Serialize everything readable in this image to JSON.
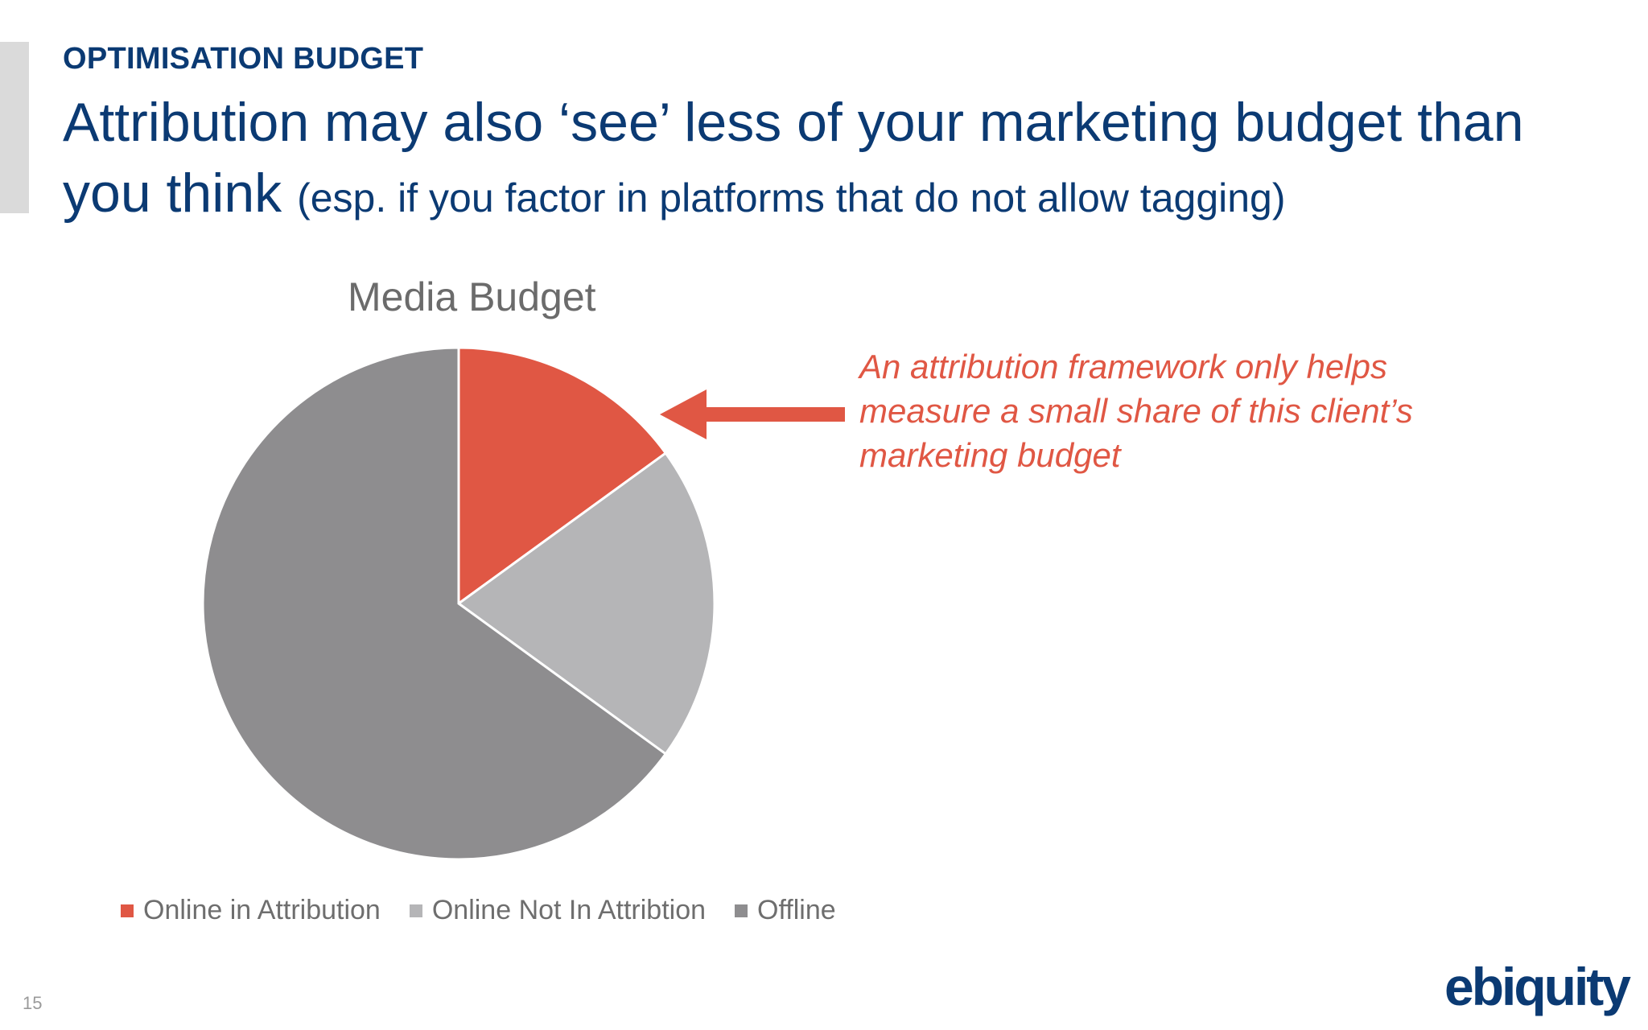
{
  "slide": {
    "kicker": "OPTIMISATION BUDGET",
    "headline_line1": "Attribution may also ‘see’ less of your marketing budget than",
    "headline_line2_main": "you think",
    "headline_line2_small": "(esp. if you factor in platforms that do not allow tagging)",
    "callout": "An attribution framework only helps measure a small share of this client’s marketing budget",
    "page_number": "15",
    "logo": "ebiquity"
  },
  "colors": {
    "accent": "#e05744",
    "brand": "#0b3a73"
  },
  "chart_data": {
    "type": "pie",
    "title": "Media Budget",
    "legend_position": "bottom",
    "slices": [
      {
        "label": "Online in Attribution",
        "value": 15,
        "color": "#e05744"
      },
      {
        "label": "Online Not In Attribtion",
        "value": 20,
        "color": "#b5b5b7"
      },
      {
        "label": "Offline",
        "value": 65,
        "color": "#8e8d8f"
      }
    ]
  }
}
